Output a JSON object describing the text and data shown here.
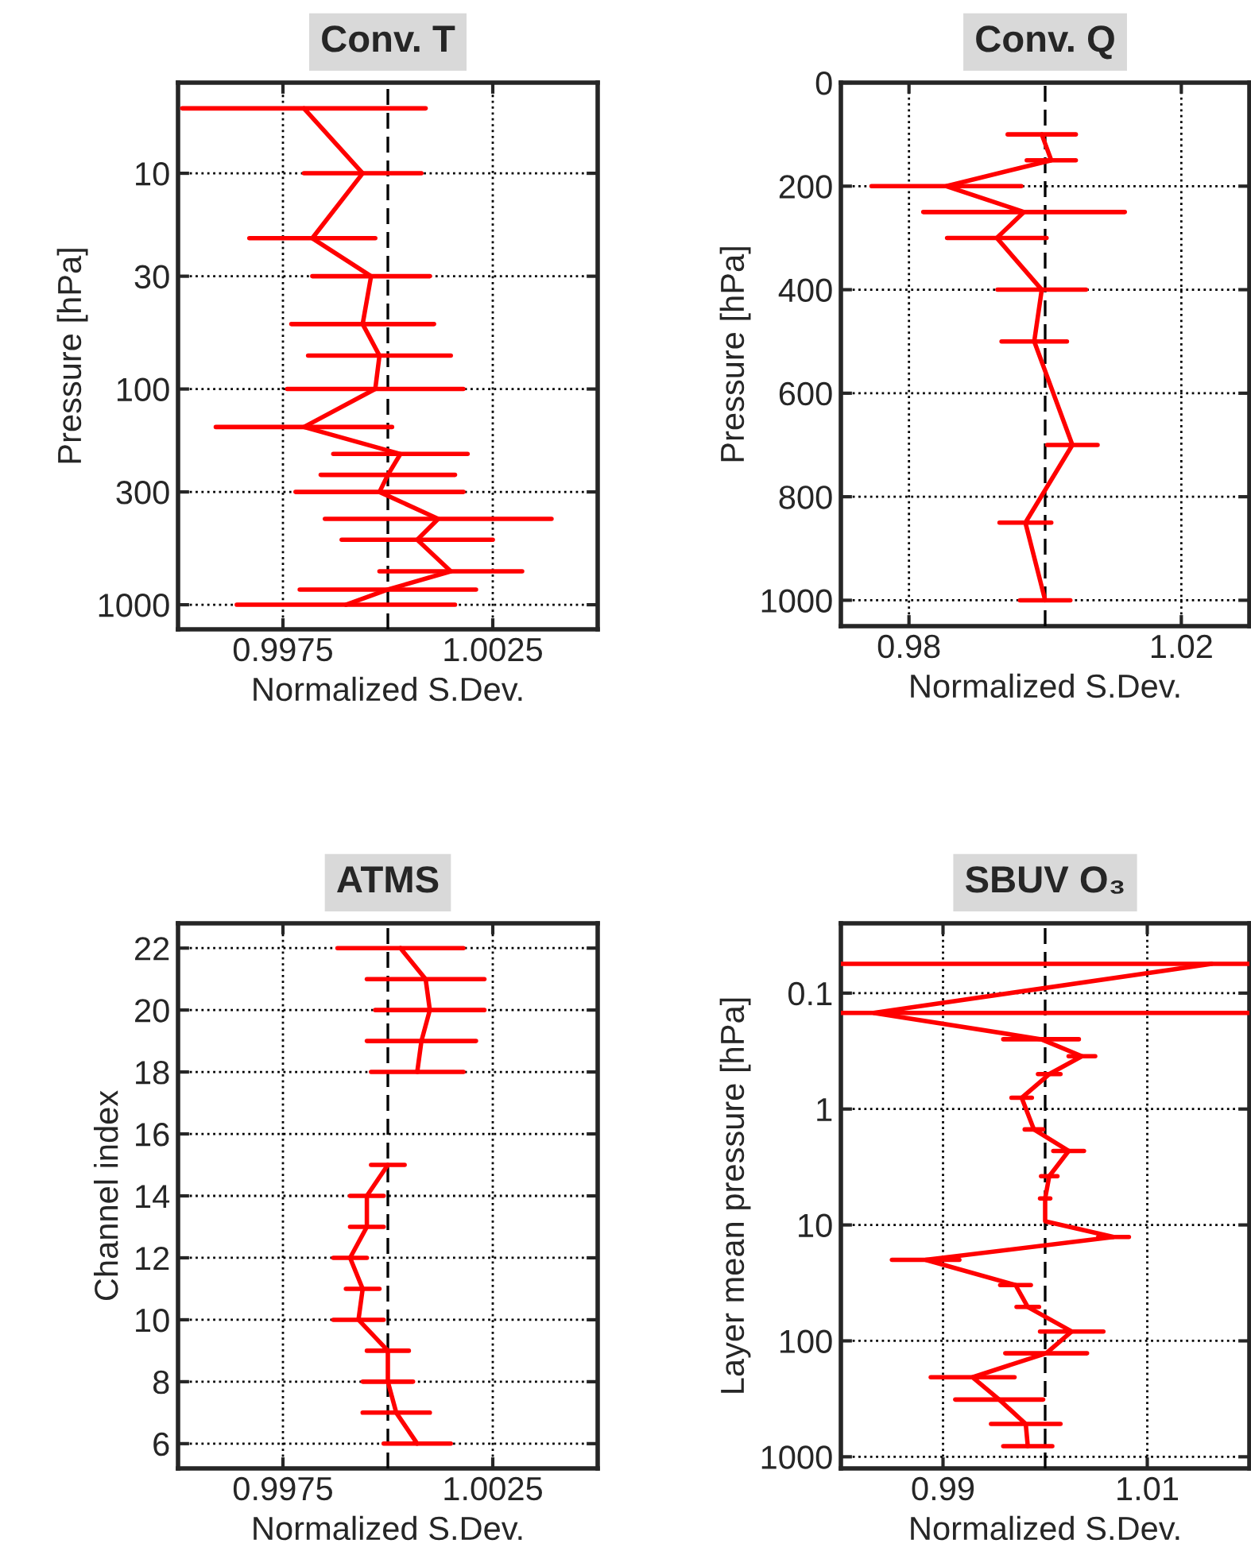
{
  "chart_data": [
    {
      "type": "line",
      "title": "Conv. T",
      "xlabel": "Normalized S.Dev.",
      "ylabel": "Pressure [hPa]",
      "xlim": [
        0.995,
        1.005
      ],
      "xticks": [
        0.9975,
        1.0025
      ],
      "ylim": [
        1300,
        3.8
      ],
      "yticks": [
        10,
        30,
        100,
        300,
        1000
      ],
      "log": "y",
      "grid": true,
      "ref_lines": [
        {
          "axis": "x",
          "value": 1,
          "color": "#000000",
          "line_style": "dashed"
        }
      ],
      "series": [
        {
          "color": "#ff0000",
          "x": [
            0.998,
            0.9994,
            0.9982,
            0.9996,
            0.9994,
            0.9998,
            0.9997,
            0.998,
            1.0003,
            1.0,
            0.9998,
            1.0012,
            1.0007,
            1.0015,
            1.0,
            0.999
          ],
          "values": [
            5,
            10,
            20,
            30,
            50,
            70,
            100,
            150,
            200,
            250,
            300,
            400,
            500,
            700,
            850,
            1000
          ],
          "xerrors": [
            0.0029,
            0.0014,
            0.0015,
            0.0014,
            0.0017,
            0.0017,
            0.0021,
            0.0021,
            0.0016,
            0.0016,
            0.002,
            0.0027,
            0.0018,
            0.0017,
            0.0021,
            0.0026
          ]
        }
      ]
    },
    {
      "type": "line",
      "title": "Conv. Q",
      "xlabel": "Normalized S.Dev.",
      "ylabel": "Pressure [hPa]",
      "xlim": [
        0.97,
        1.03
      ],
      "xticks": [
        0.98,
        1.02
      ],
      "ylim": [
        1050,
        0
      ],
      "yticks": [
        0,
        200,
        400,
        600,
        800,
        1000
      ],
      "grid": true,
      "ref_lines": [
        {
          "axis": "x",
          "value": 1,
          "color": "#000000",
          "line_style": "dashed"
        }
      ],
      "series": [
        {
          "color": "#ff0000",
          "x": [
            0.9995,
            1.0009,
            0.9855,
            0.9969,
            0.9929,
            0.9995,
            0.9984,
            1.004,
            0.9971,
            1.0
          ],
          "values": [
            100,
            150,
            200,
            250,
            300,
            400,
            500,
            700,
            850,
            1000
          ],
          "xerrors": [
            0.005,
            0.0036,
            0.011,
            0.0148,
            0.0073,
            0.0065,
            0.0048,
            0.0037,
            0.0038,
            0.0037
          ]
        }
      ]
    },
    {
      "type": "line",
      "title": "ATMS",
      "xlabel": "Normalized S.Dev.",
      "ylabel": "Channel index",
      "xlim": [
        0.995,
        1.005
      ],
      "xticks": [
        0.9975,
        1.0025
      ],
      "ylim": [
        5.2,
        22.8
      ],
      "yticks": [
        6,
        8,
        10,
        12,
        14,
        16,
        18,
        20,
        22
      ],
      "grid": true,
      "ref_lines": [
        {
          "axis": "x",
          "value": 1,
          "color": "#000000",
          "line_style": "dashed"
        }
      ],
      "series": [
        {
          "color": "#ff0000",
          "x": [
            1.0007,
            1.0002,
            1.0,
            1.0,
            0.9993,
            0.9994,
            0.9991,
            0.9995,
            0.9995,
            1.0
          ],
          "values": [
            6,
            7,
            8,
            9,
            10,
            11,
            12,
            13,
            14,
            15
          ],
          "xerrors": [
            0.0008,
            0.0008,
            0.0006,
            0.0005,
            0.0006,
            0.0004,
            0.0004,
            0.0004,
            0.0004,
            0.0004
          ]
        },
        {
          "color": "#ff0000",
          "x": [
            1.0007,
            1.0008,
            1.001,
            1.0009,
            1.0003
          ],
          "values": [
            18,
            19,
            20,
            21,
            22
          ],
          "xerrors": [
            0.0011,
            0.0013,
            0.0013,
            0.0014,
            0.0015
          ]
        }
      ]
    },
    {
      "type": "line",
      "title": "SBUV O₃",
      "xlabel": "Normalized S.Dev.",
      "ylabel": "Layer mean pressure [hPa]",
      "xlim": [
        0.98,
        1.02
      ],
      "xticks": [
        0.99,
        1.01
      ],
      "ylim": [
        1260,
        0.025
      ],
      "yticks": [
        0.1,
        1,
        10,
        100,
        1000
      ],
      "log": "y",
      "grid": true,
      "ref_lines": [
        {
          "axis": "x",
          "value": 1,
          "color": "#000000",
          "line_style": "dashed"
        }
      ],
      "series": [
        {
          "color": "#ff0000",
          "x": [
            1.0163,
            0.9832,
            0.9996,
            1.0036,
            1.0004,
            0.9977,
            0.9989,
            1.0023,
            1.0004,
            1.0,
            1.0,
            1.0067,
            0.9883,
            0.9971,
            0.9983,
            1.0026,
            1.0001,
            0.9929,
            0.9955,
            0.9981,
            0.9983
          ],
          "values": [
            0.056,
            0.148,
            0.25,
            0.35,
            0.5,
            0.8,
            1.5,
            2.3,
            3.8,
            5.9,
            9.3,
            12.7,
            20,
            33,
            51,
            83,
            128,
            206,
            321,
            521,
            811
          ],
          "xerrors": [
            [
              0.98,
              1.02
            ],
            [
              0.98,
              1.02
            ],
            0.0037,
            0.0013,
            0.0011,
            0.001,
            0.0009,
            0.0015,
            0.0008,
            0.0005,
            null,
            0.0015,
            0.0033,
            0.0015,
            0.0011,
            0.0031,
            0.004,
            0.0041,
            0.0043,
            0.0034,
            0.0024
          ]
        }
      ]
    }
  ]
}
